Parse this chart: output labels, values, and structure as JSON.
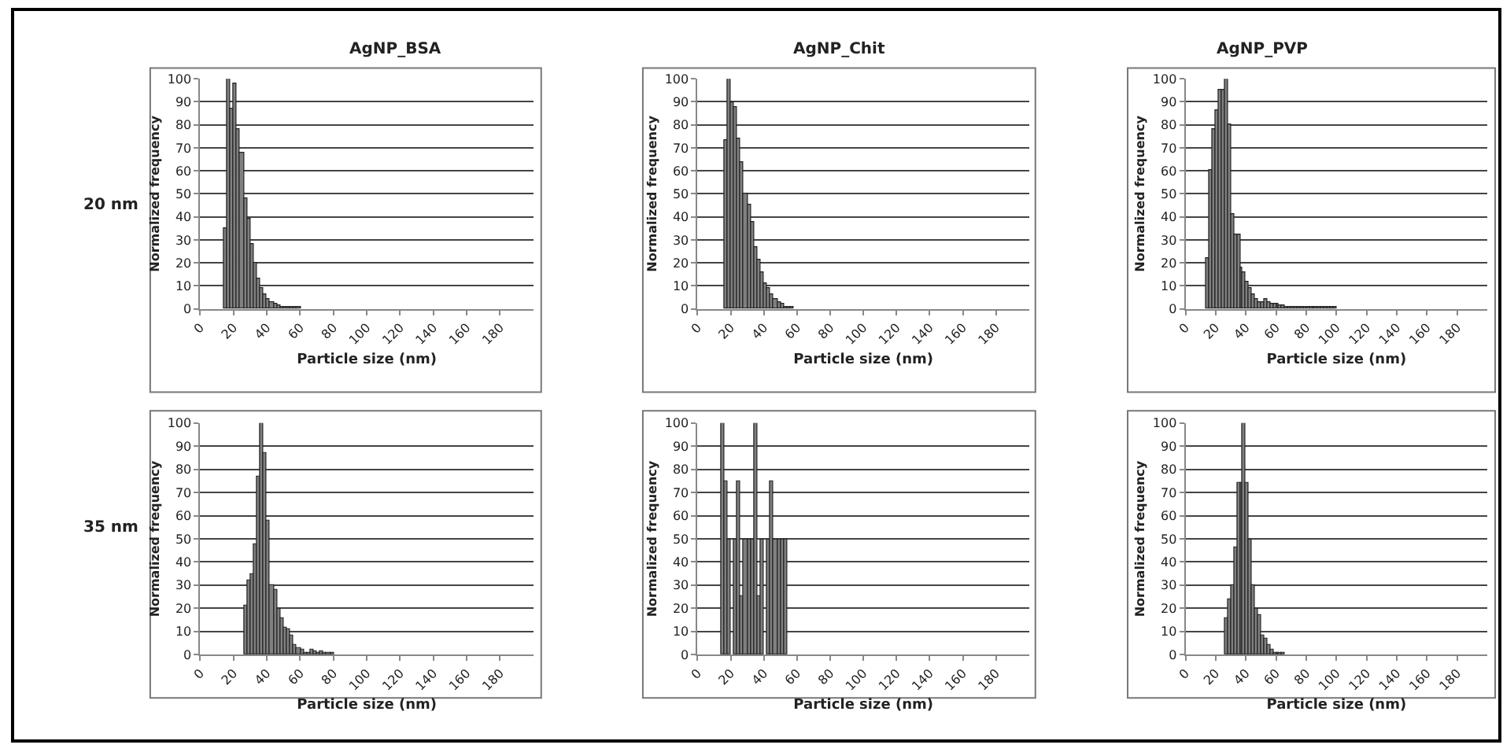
{
  "chart_data": [
    {
      "type": "histogram",
      "title": "AgNP_BSA",
      "annotations": [
        "20 nm"
      ],
      "xlabel": "Particle size (nm)",
      "ylabel": "Normalized frequency",
      "color": "#808080",
      "xlim": [
        0,
        200
      ],
      "xticks": [
        0,
        20,
        40,
        60,
        80,
        100,
        120,
        140,
        160,
        180
      ],
      "ylim": [
        0,
        100
      ],
      "yticks": [
        0,
        10,
        20,
        30,
        40,
        50,
        60,
        70,
        80,
        90,
        100
      ],
      "grid": "y",
      "bins": [
        14,
        16,
        18,
        20,
        22,
        24,
        26,
        28,
        30,
        32,
        34,
        36,
        38,
        40,
        42,
        44,
        46,
        48,
        50,
        52,
        54,
        56,
        58,
        60
      ],
      "values": [
        35,
        100,
        87,
        98,
        78,
        68,
        48,
        39,
        28,
        20,
        13,
        9,
        6,
        4,
        3,
        2,
        1.5,
        1,
        1,
        0.5,
        0.5,
        0.5,
        0.5
      ]
    },
    {
      "type": "histogram",
      "title": "AgNP_Chit",
      "xlabel": "Particle size (nm)",
      "ylabel": "Normalized frequency",
      "color": "#808080",
      "xlim": [
        0,
        200
      ],
      "xticks": [
        0,
        20,
        40,
        60,
        80,
        100,
        120,
        140,
        160,
        180
      ],
      "ylim": [
        0,
        100
      ],
      "yticks": [
        0,
        10,
        20,
        30,
        40,
        50,
        60,
        70,
        80,
        90,
        100
      ],
      "grid": "y",
      "bins": [
        16,
        18,
        20,
        22,
        24,
        26,
        28,
        30,
        32,
        34,
        36,
        38,
        40,
        42,
        44,
        46,
        48,
        50,
        52,
        54,
        56,
        58
      ],
      "values": [
        73,
        100,
        90,
        88,
        74,
        64,
        50,
        45,
        38,
        27,
        21,
        16,
        11,
        9,
        6,
        4,
        3,
        2,
        1,
        1,
        0.5
      ]
    },
    {
      "type": "histogram",
      "title": "AgNP_PVP",
      "xlabel": "Particle size (nm)",
      "ylabel": "Normalized frequency",
      "color": "#808080",
      "xlim": [
        0,
        200
      ],
      "xticks": [
        0,
        20,
        40,
        60,
        80,
        100,
        120,
        140,
        160,
        180
      ],
      "ylim": [
        0,
        100
      ],
      "yticks": [
        0,
        10,
        20,
        30,
        40,
        50,
        60,
        70,
        80,
        90,
        100
      ],
      "grid": "y",
      "bins": [
        14,
        16,
        18,
        20,
        22,
        24,
        26,
        28,
        30,
        32,
        34,
        36,
        38,
        40,
        42,
        44,
        46,
        48,
        50,
        52,
        54,
        56,
        58,
        60,
        62,
        64,
        66,
        68,
        70,
        72,
        74,
        76,
        78,
        80,
        82,
        84,
        86,
        88,
        90,
        92,
        94,
        96,
        98,
        100
      ],
      "values": [
        22,
        60,
        78,
        86,
        95,
        95,
        100,
        80,
        41,
        32,
        32,
        18,
        16,
        12,
        9,
        6,
        4,
        3,
        3,
        4,
        3,
        2,
        2,
        2,
        1.5,
        1.5,
        1,
        1,
        1,
        1,
        1,
        1,
        1,
        1,
        1,
        0.5,
        0.5,
        0.5,
        0.5,
        0.5,
        0.5,
        0.5,
        0.5
      ]
    },
    {
      "type": "histogram",
      "annotations": [
        "35 nm"
      ],
      "xlabel": "Particle size (nm)",
      "ylabel": "Normalized frequency",
      "color": "#808080",
      "xlim": [
        0,
        200
      ],
      "xticks": [
        0,
        20,
        40,
        60,
        80,
        100,
        120,
        140,
        160,
        180
      ],
      "ylim": [
        0,
        100
      ],
      "yticks": [
        0,
        10,
        20,
        30,
        40,
        50,
        60,
        70,
        80,
        90,
        100
      ],
      "grid": "y",
      "bins": [
        26,
        28,
        30,
        32,
        34,
        36,
        38,
        40,
        42,
        44,
        46,
        48,
        50,
        52,
        54,
        56,
        58,
        60,
        62,
        64,
        66,
        68,
        70,
        72,
        74,
        76,
        78,
        80
      ],
      "values": [
        21,
        32,
        35,
        48,
        77,
        100,
        87,
        58,
        30,
        28,
        20,
        16,
        12,
        11,
        8,
        4,
        3,
        2,
        1,
        1,
        2,
        1.5,
        1,
        1.5,
        0.5,
        0.5,
        0.5
      ]
    },
    {
      "type": "histogram",
      "xlabel": "Particle size (nm)",
      "ylabel": "Normalized frequency",
      "color": "#808080",
      "xlim": [
        0,
        200
      ],
      "xticks": [
        0,
        20,
        40,
        60,
        80,
        100,
        120,
        140,
        160,
        180
      ],
      "ylim": [
        0,
        100
      ],
      "yticks": [
        0,
        10,
        20,
        30,
        40,
        50,
        60,
        70,
        80,
        90,
        100
      ],
      "grid": "y",
      "bins": [
        14,
        16,
        18,
        20,
        22,
        24,
        26,
        28,
        30,
        32,
        34,
        36,
        38,
        40,
        42,
        44,
        46,
        48,
        50,
        52,
        54
      ],
      "values": [
        100,
        75,
        50,
        0,
        50,
        75,
        25,
        50,
        50,
        50,
        100,
        25,
        50,
        0,
        50,
        75,
        50,
        50,
        50,
        50
      ]
    },
    {
      "type": "histogram",
      "xlabel": "Particle size (nm)",
      "ylabel": "Normalized frequency",
      "color": "#808080",
      "xlim": [
        0,
        200
      ],
      "xticks": [
        0,
        20,
        40,
        60,
        80,
        100,
        120,
        140,
        160,
        180
      ],
      "ylim": [
        0,
        100
      ],
      "yticks": [
        0,
        10,
        20,
        30,
        40,
        50,
        60,
        70,
        80,
        90,
        100
      ],
      "grid": "y",
      "bins": [
        26,
        28,
        30,
        32,
        34,
        36,
        38,
        40,
        42,
        44,
        46,
        48,
        50,
        52,
        54,
        56,
        58,
        60,
        62,
        64,
        66
      ],
      "values": [
        16,
        24,
        30,
        46,
        74,
        74,
        100,
        74,
        50,
        30,
        20,
        17,
        8,
        7,
        4,
        2,
        0.5,
        0.5,
        0.5,
        0.5
      ]
    }
  ]
}
